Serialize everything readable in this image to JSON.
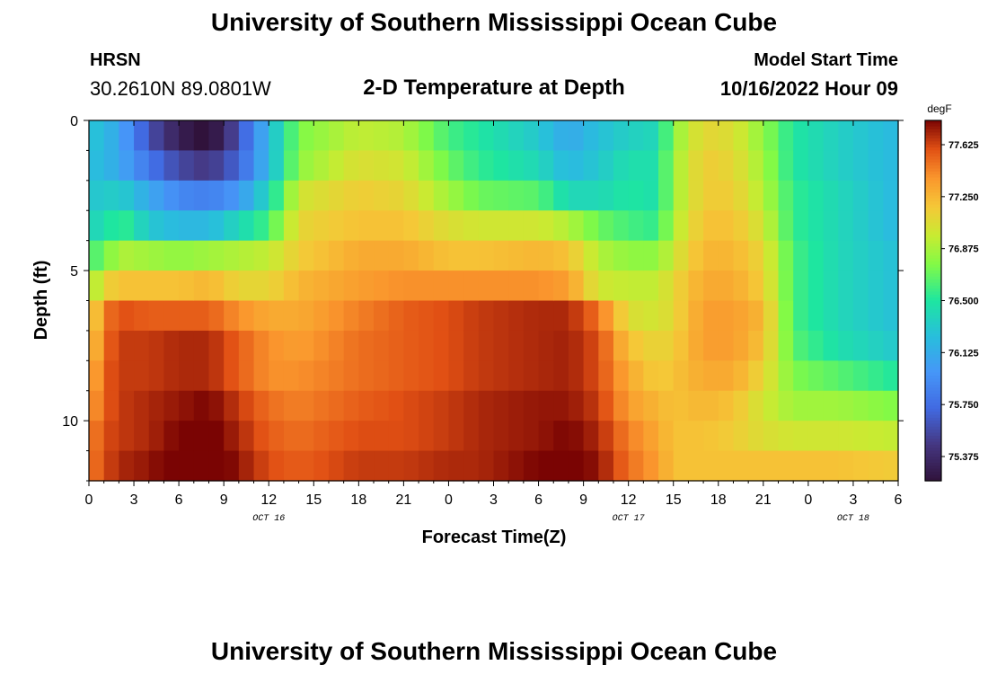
{
  "header": {
    "title": "University of Southern Mississippi Ocean Cube",
    "station": "HRSN",
    "coords": "30.2610N  89.0801W",
    "subtitle": "2-D Temperature at Depth",
    "model_label": "Model Start Time",
    "model_time": "10/16/2022 Hour 09"
  },
  "footer": {
    "title": "University of Southern Mississippi Ocean Cube"
  },
  "chart_data": {
    "type": "heatmap",
    "title": "2-D Temperature at Depth",
    "xlabel": "Forecast Time(Z)",
    "ylabel": "Depth (ft)",
    "xlim": [
      0,
      54
    ],
    "ylim": [
      0,
      12
    ],
    "x_ticks": [
      {
        "x": 0,
        "label": "0"
      },
      {
        "x": 3,
        "label": "3"
      },
      {
        "x": 6,
        "label": "6"
      },
      {
        "x": 9,
        "label": "9"
      },
      {
        "x": 12,
        "label": "12"
      },
      {
        "x": 15,
        "label": "15"
      },
      {
        "x": 18,
        "label": "18"
      },
      {
        "x": 21,
        "label": "21"
      },
      {
        "x": 24,
        "label": "0"
      },
      {
        "x": 27,
        "label": "3"
      },
      {
        "x": 30,
        "label": "6"
      },
      {
        "x": 33,
        "label": "9"
      },
      {
        "x": 36,
        "label": "12"
      },
      {
        "x": 39,
        "label": "15"
      },
      {
        "x": 42,
        "label": "18"
      },
      {
        "x": 45,
        "label": "21"
      },
      {
        "x": 48,
        "label": "0"
      },
      {
        "x": 51,
        "label": "3"
      },
      {
        "x": 54,
        "label": "6"
      }
    ],
    "date_labels": [
      {
        "x": 12,
        "label": "OCT 16"
      },
      {
        "x": 36,
        "label": "OCT 17"
      },
      {
        "x": 51,
        "label": "OCT 18"
      }
    ],
    "y_ticks": [
      {
        "y": 0,
        "label": "0"
      },
      {
        "y": 5,
        "label": "5"
      },
      {
        "y": 10,
        "label": "10"
      }
    ],
    "colorbar": {
      "unit": "degF",
      "min": 75.2,
      "max": 77.8,
      "ticks": [
        "77.625",
        "77.250",
        "76.875",
        "76.500",
        "76.125",
        "75.750",
        "75.375"
      ]
    },
    "keyframes": [
      {
        "t": 0,
        "v": [
          76.3,
          76.25,
          76.3,
          76.4,
          76.6,
          76.8,
          77.0,
          77.1,
          77.2,
          77.3,
          77.4,
          77.45
        ]
      },
      {
        "t": 1,
        "v": [
          76.2,
          76.2,
          76.3,
          76.4,
          76.7,
          77.1,
          77.45,
          77.5,
          77.55,
          77.55,
          77.6,
          77.6
        ]
      },
      {
        "t": 2,
        "v": [
          76.1,
          76.1,
          76.35,
          76.6,
          76.9,
          77.2,
          77.6,
          77.65,
          77.65,
          77.65,
          77.65,
          77.7
        ]
      },
      {
        "t": 4,
        "v": [
          75.6,
          75.8,
          76.1,
          76.3,
          76.85,
          77.2,
          77.55,
          77.65,
          77.65,
          77.7,
          77.7,
          77.75
        ]
      },
      {
        "t": 6,
        "v": [
          75.3,
          75.55,
          75.9,
          76.2,
          76.8,
          77.2,
          77.55,
          77.7,
          77.7,
          77.75,
          77.8,
          77.85
        ]
      },
      {
        "t": 8,
        "v": [
          75.15,
          75.45,
          75.85,
          76.2,
          76.85,
          77.25,
          77.55,
          77.7,
          77.7,
          77.8,
          77.85,
          77.9
        ]
      },
      {
        "t": 10,
        "v": [
          75.6,
          75.7,
          76.0,
          76.4,
          76.9,
          77.1,
          77.4,
          77.55,
          77.55,
          77.65,
          77.7,
          77.75
        ]
      },
      {
        "t": 12,
        "v": [
          76.2,
          76.2,
          76.4,
          76.6,
          76.95,
          77.1,
          77.3,
          77.4,
          77.4,
          77.5,
          77.55,
          77.6
        ]
      },
      {
        "t": 14,
        "v": [
          76.75,
          76.8,
          77.0,
          77.1,
          77.15,
          77.25,
          77.3,
          77.35,
          77.4,
          77.45,
          77.5,
          77.55
        ]
      },
      {
        "t": 18,
        "v": [
          76.95,
          77.05,
          77.15,
          77.2,
          77.3,
          77.35,
          77.45,
          77.5,
          77.5,
          77.55,
          77.6,
          77.65
        ]
      },
      {
        "t": 21,
        "v": [
          76.9,
          77.0,
          77.1,
          77.2,
          77.3,
          77.4,
          77.55,
          77.55,
          77.55,
          77.6,
          77.6,
          77.65
        ]
      },
      {
        "t": 24,
        "v": [
          76.6,
          76.7,
          76.85,
          77.05,
          77.2,
          77.4,
          77.6,
          77.6,
          77.6,
          77.65,
          77.65,
          77.7
        ]
      },
      {
        "t": 26,
        "v": [
          76.5,
          76.55,
          76.7,
          77.0,
          77.2,
          77.4,
          77.65,
          77.65,
          77.65,
          77.7,
          77.7,
          77.7
        ]
      },
      {
        "t": 30,
        "v": [
          76.3,
          76.4,
          76.65,
          77.0,
          77.25,
          77.4,
          77.7,
          77.7,
          77.7,
          77.75,
          77.75,
          77.8
        ]
      },
      {
        "t": 32,
        "v": [
          76.1,
          76.2,
          76.4,
          76.9,
          77.2,
          77.35,
          77.7,
          77.72,
          77.72,
          77.75,
          77.8,
          77.85
        ]
      },
      {
        "t": 34,
        "v": [
          76.25,
          76.3,
          76.4,
          76.7,
          76.9,
          77.0,
          77.5,
          77.6,
          77.6,
          77.65,
          77.7,
          77.75
        ]
      },
      {
        "t": 36,
        "v": [
          76.35,
          76.45,
          76.5,
          76.6,
          76.8,
          76.95,
          77.05,
          77.2,
          77.3,
          77.35,
          77.45,
          77.5
        ]
      },
      {
        "t": 38,
        "v": [
          76.4,
          76.45,
          76.45,
          76.55,
          76.8,
          76.95,
          77.0,
          77.1,
          77.15,
          77.25,
          77.3,
          77.35
        ]
      },
      {
        "t": 39,
        "v": [
          76.8,
          76.85,
          76.85,
          76.9,
          77.0,
          77.1,
          77.1,
          77.15,
          77.2,
          77.2,
          77.2,
          77.2
        ]
      },
      {
        "t": 41,
        "v": [
          77.1,
          77.15,
          77.15,
          77.2,
          77.25,
          77.3,
          77.35,
          77.35,
          77.3,
          77.25,
          77.2,
          77.2
        ]
      },
      {
        "t": 43,
        "v": [
          77.05,
          77.1,
          77.15,
          77.2,
          77.25,
          77.3,
          77.35,
          77.35,
          77.3,
          77.2,
          77.15,
          77.2
        ]
      },
      {
        "t": 45,
        "v": [
          76.8,
          76.85,
          76.9,
          77.0,
          77.1,
          77.15,
          77.25,
          77.2,
          77.1,
          77.0,
          77.05,
          77.2
        ]
      },
      {
        "t": 47,
        "v": [
          76.5,
          76.5,
          76.55,
          76.55,
          76.6,
          76.6,
          76.6,
          76.65,
          76.75,
          76.85,
          77.0,
          77.2
        ]
      },
      {
        "t": 50,
        "v": [
          76.35,
          76.35,
          76.4,
          76.4,
          76.4,
          76.4,
          76.4,
          76.45,
          76.65,
          76.85,
          77.0,
          77.2
        ]
      },
      {
        "t": 54,
        "v": [
          76.2,
          76.2,
          76.2,
          76.2,
          76.25,
          76.25,
          76.25,
          76.3,
          76.5,
          76.75,
          76.95,
          77.15
        ]
      }
    ]
  }
}
